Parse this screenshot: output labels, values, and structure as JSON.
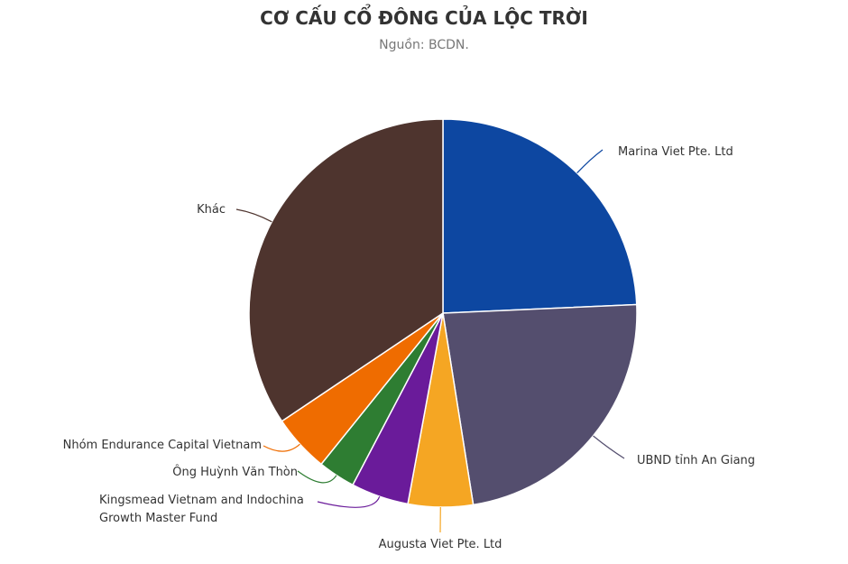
{
  "chart_data": {
    "type": "pie",
    "title": "CƠ CẤU CỔ ĐÔNG CỦA LỘC TRỜI",
    "subtitle": "Nguồn: BCDN.",
    "categories": [
      "Marina Viet Pte. Ltd",
      "UBND tỉnh An Giang",
      "Augusta Viet Pte. Ltd",
      "Kingsmead Vietnam and Indochina Growth Master Fund",
      "Ông Huỳnh Văn Thòn",
      "Nhóm Endurance Capital Vietnam",
      "Khác"
    ],
    "values": [
      24.3,
      23.2,
      5.4,
      4.8,
      3.1,
      4.8,
      34.4
    ],
    "colors": [
      "#0d47a1",
      "#544e6e",
      "#f5a623",
      "#6a1b9a",
      "#2e7d32",
      "#ef6c00",
      "#4e342e"
    ]
  }
}
